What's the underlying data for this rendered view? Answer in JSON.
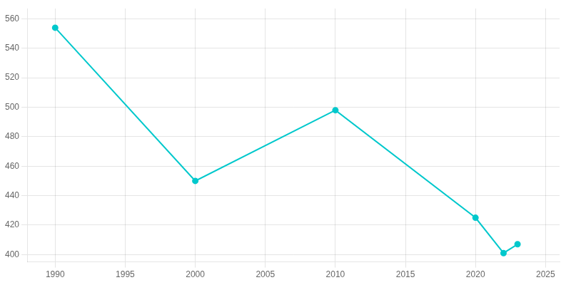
{
  "chart_data": {
    "type": "line",
    "x": [
      1990,
      2000,
      2010,
      2020,
      2022,
      2023
    ],
    "values": [
      554,
      450,
      498,
      425,
      401,
      407
    ],
    "color": "#00c8cc",
    "marker": "circle",
    "xlim": [
      1988,
      2026
    ],
    "ylim": [
      395,
      567
    ],
    "xticks": [
      1990,
      1995,
      2000,
      2005,
      2010,
      2015,
      2020,
      2025
    ],
    "yticks": [
      400,
      420,
      440,
      460,
      480,
      500,
      520,
      540,
      560
    ],
    "grid": true
  }
}
